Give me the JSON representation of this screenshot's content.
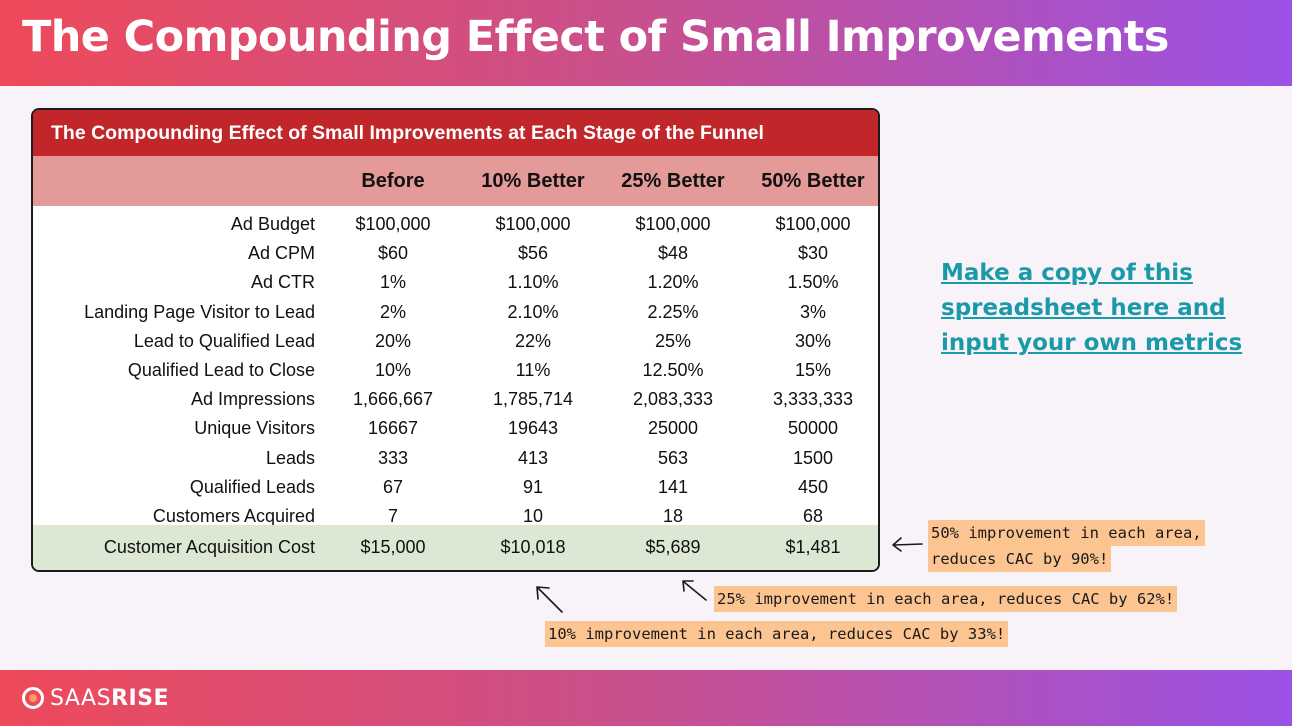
{
  "header": {
    "title": "The Compounding Effect of Small Improvements"
  },
  "table": {
    "title": "The Compounding Effect of Small Improvements at Each Stage of the Funnel",
    "columns": [
      "Before",
      "10% Better",
      "25% Better",
      "50% Better"
    ],
    "rows": [
      {
        "label": "Ad Budget",
        "values": [
          "$100,000",
          "$100,000",
          "$100,000",
          "$100,000"
        ]
      },
      {
        "label": "Ad CPM",
        "values": [
          "$60",
          "$56",
          "$48",
          "$30"
        ]
      },
      {
        "label": "Ad CTR",
        "values": [
          "1%",
          "1.10%",
          "1.20%",
          "1.50%"
        ]
      },
      {
        "label": "Landing Page Visitor to Lead",
        "values": [
          "2%",
          "2.10%",
          "2.25%",
          "3%"
        ]
      },
      {
        "label": "Lead to Qualified Lead",
        "values": [
          "20%",
          "22%",
          "25%",
          "30%"
        ]
      },
      {
        "label": "Qualified Lead to Close",
        "values": [
          "10%",
          "11%",
          "12.50%",
          "15%"
        ]
      },
      {
        "label": "Ad Impressions",
        "values": [
          "1,666,667",
          "1,785,714",
          "2,083,333",
          "3,333,333"
        ]
      },
      {
        "label": "Unique Visitors",
        "values": [
          "16667",
          "19643",
          "25000",
          "50000"
        ]
      },
      {
        "label": "Leads",
        "values": [
          "333",
          "413",
          "563",
          "1500"
        ]
      },
      {
        "label": "Qualified Leads",
        "values": [
          "67",
          "91",
          "141",
          "450"
        ]
      },
      {
        "label": "Customers Acquired",
        "values": [
          "7",
          "10",
          "18",
          "68"
        ]
      }
    ],
    "cac": {
      "label": "Customer Acquisition Cost",
      "values": [
        "$15,000",
        "$10,018",
        "$5,689",
        "$1,481"
      ]
    }
  },
  "cta": {
    "text": "Make a copy of this spreadsheet here and input your own metrics"
  },
  "notes": {
    "fifty_line1": "50% improvement in each area,",
    "fifty_line2": "reduces CAC by 90%!",
    "twentyfive": "25% improvement in each area, reduces CAC by 62%!",
    "ten": "10% improvement in each area, reduces CAC by 33%!"
  },
  "footer": {
    "logo_part1": "SAAS",
    "logo_part2": "RISE"
  },
  "colors": {
    "accent_red": "#c0262a",
    "header_pink": "#e49a98",
    "cac_green": "#dce8d4",
    "cta_teal": "#1a9aa8",
    "note_orange": "#fcc491"
  }
}
